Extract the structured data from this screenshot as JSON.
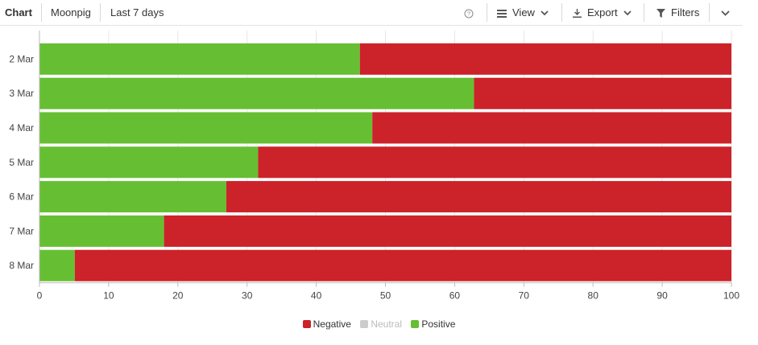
{
  "toolbar": {
    "chart_label": "Chart",
    "brand": "Moonpig",
    "range": "Last 7 days",
    "view_label": "View",
    "export_label": "Export",
    "filters_label": "Filters"
  },
  "icons": {
    "help": "help-circle-icon",
    "view": "list-icon",
    "export": "download-icon",
    "filter": "funnel-icon",
    "chevron": "chevron-down-icon"
  },
  "chart_data": {
    "type": "bar",
    "orientation": "horizontal",
    "stacked": true,
    "categories": [
      "2 Mar",
      "3 Mar",
      "4 Mar",
      "5 Mar",
      "6 Mar",
      "7 Mar",
      "8 Mar"
    ],
    "series": [
      {
        "name": "Positive",
        "color": "#66bf33",
        "values": [
          46.3,
          62.8,
          48.1,
          31.6,
          27.0,
          18.0,
          5.1
        ]
      },
      {
        "name": "Negative",
        "color": "#cc2229",
        "values": [
          53.7,
          37.2,
          51.9,
          68.4,
          73.0,
          82.0,
          94.9
        ]
      }
    ],
    "xlim": [
      0,
      100
    ],
    "xticks": [
      0,
      10,
      20,
      30,
      40,
      50,
      60,
      70,
      80,
      90,
      100
    ],
    "grid": true,
    "legend": {
      "position": "bottom",
      "entries": [
        {
          "name": "Negative",
          "color": "#cc2229"
        },
        {
          "name": "Neutral",
          "color": "#cccccc"
        },
        {
          "name": "Positive",
          "color": "#66bf33"
        }
      ]
    }
  }
}
